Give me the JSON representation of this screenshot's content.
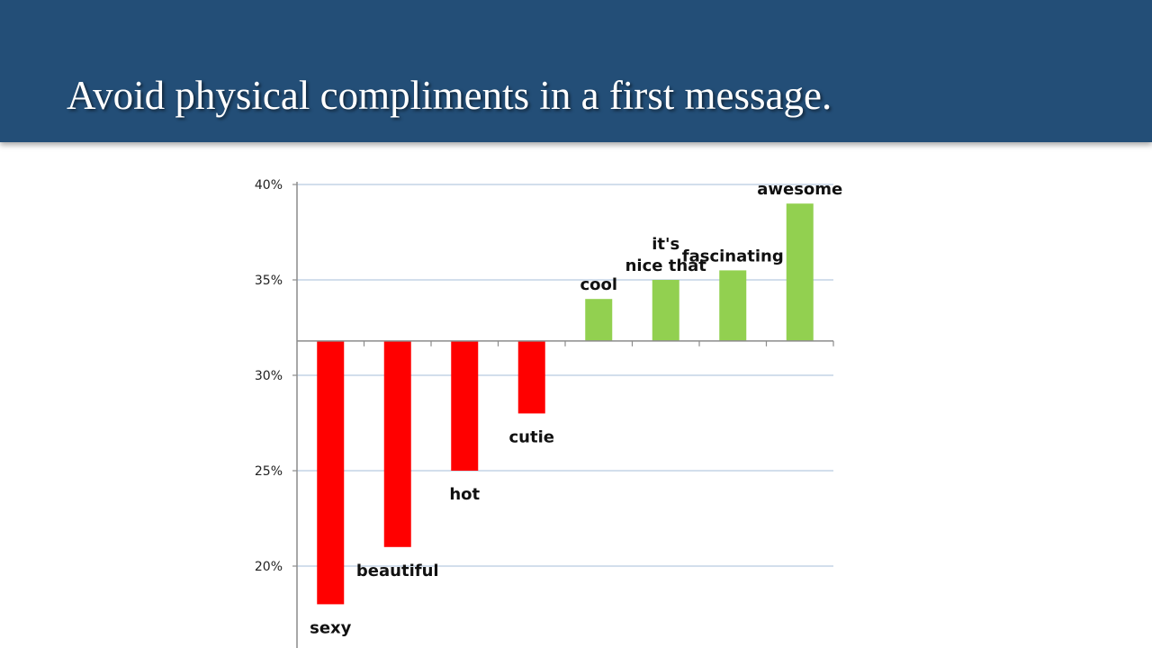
{
  "slide": {
    "title": "Avoid physical compliments in a first message."
  },
  "chart_data": {
    "type": "bar",
    "categories": [
      "sexy",
      "beautiful",
      "hot",
      "cutie",
      "cool",
      "it's nice that",
      "fascinating",
      "awesome"
    ],
    "label_lines": [
      [
        "sexy"
      ],
      [
        "beautiful"
      ],
      [
        "hot"
      ],
      [
        "cutie"
      ],
      [
        "cool"
      ],
      [
        "it's",
        "nice that"
      ],
      [
        "fascinating"
      ],
      [
        "awesome"
      ]
    ],
    "values": [
      18,
      21,
      25,
      28,
      34,
      35,
      35.5,
      39
    ],
    "baseline": 31.8,
    "y_ticks": [
      "40%",
      "35%",
      "30%",
      "25%",
      "20%"
    ],
    "y_tick_values": [
      40,
      35,
      30,
      25,
      20
    ],
    "ylim": [
      16,
      40
    ],
    "grid": true,
    "colors": {
      "below": "#ff0000",
      "above": "#92d050",
      "grid": "#b8c9e0",
      "axis": "#8c8c8c"
    }
  }
}
